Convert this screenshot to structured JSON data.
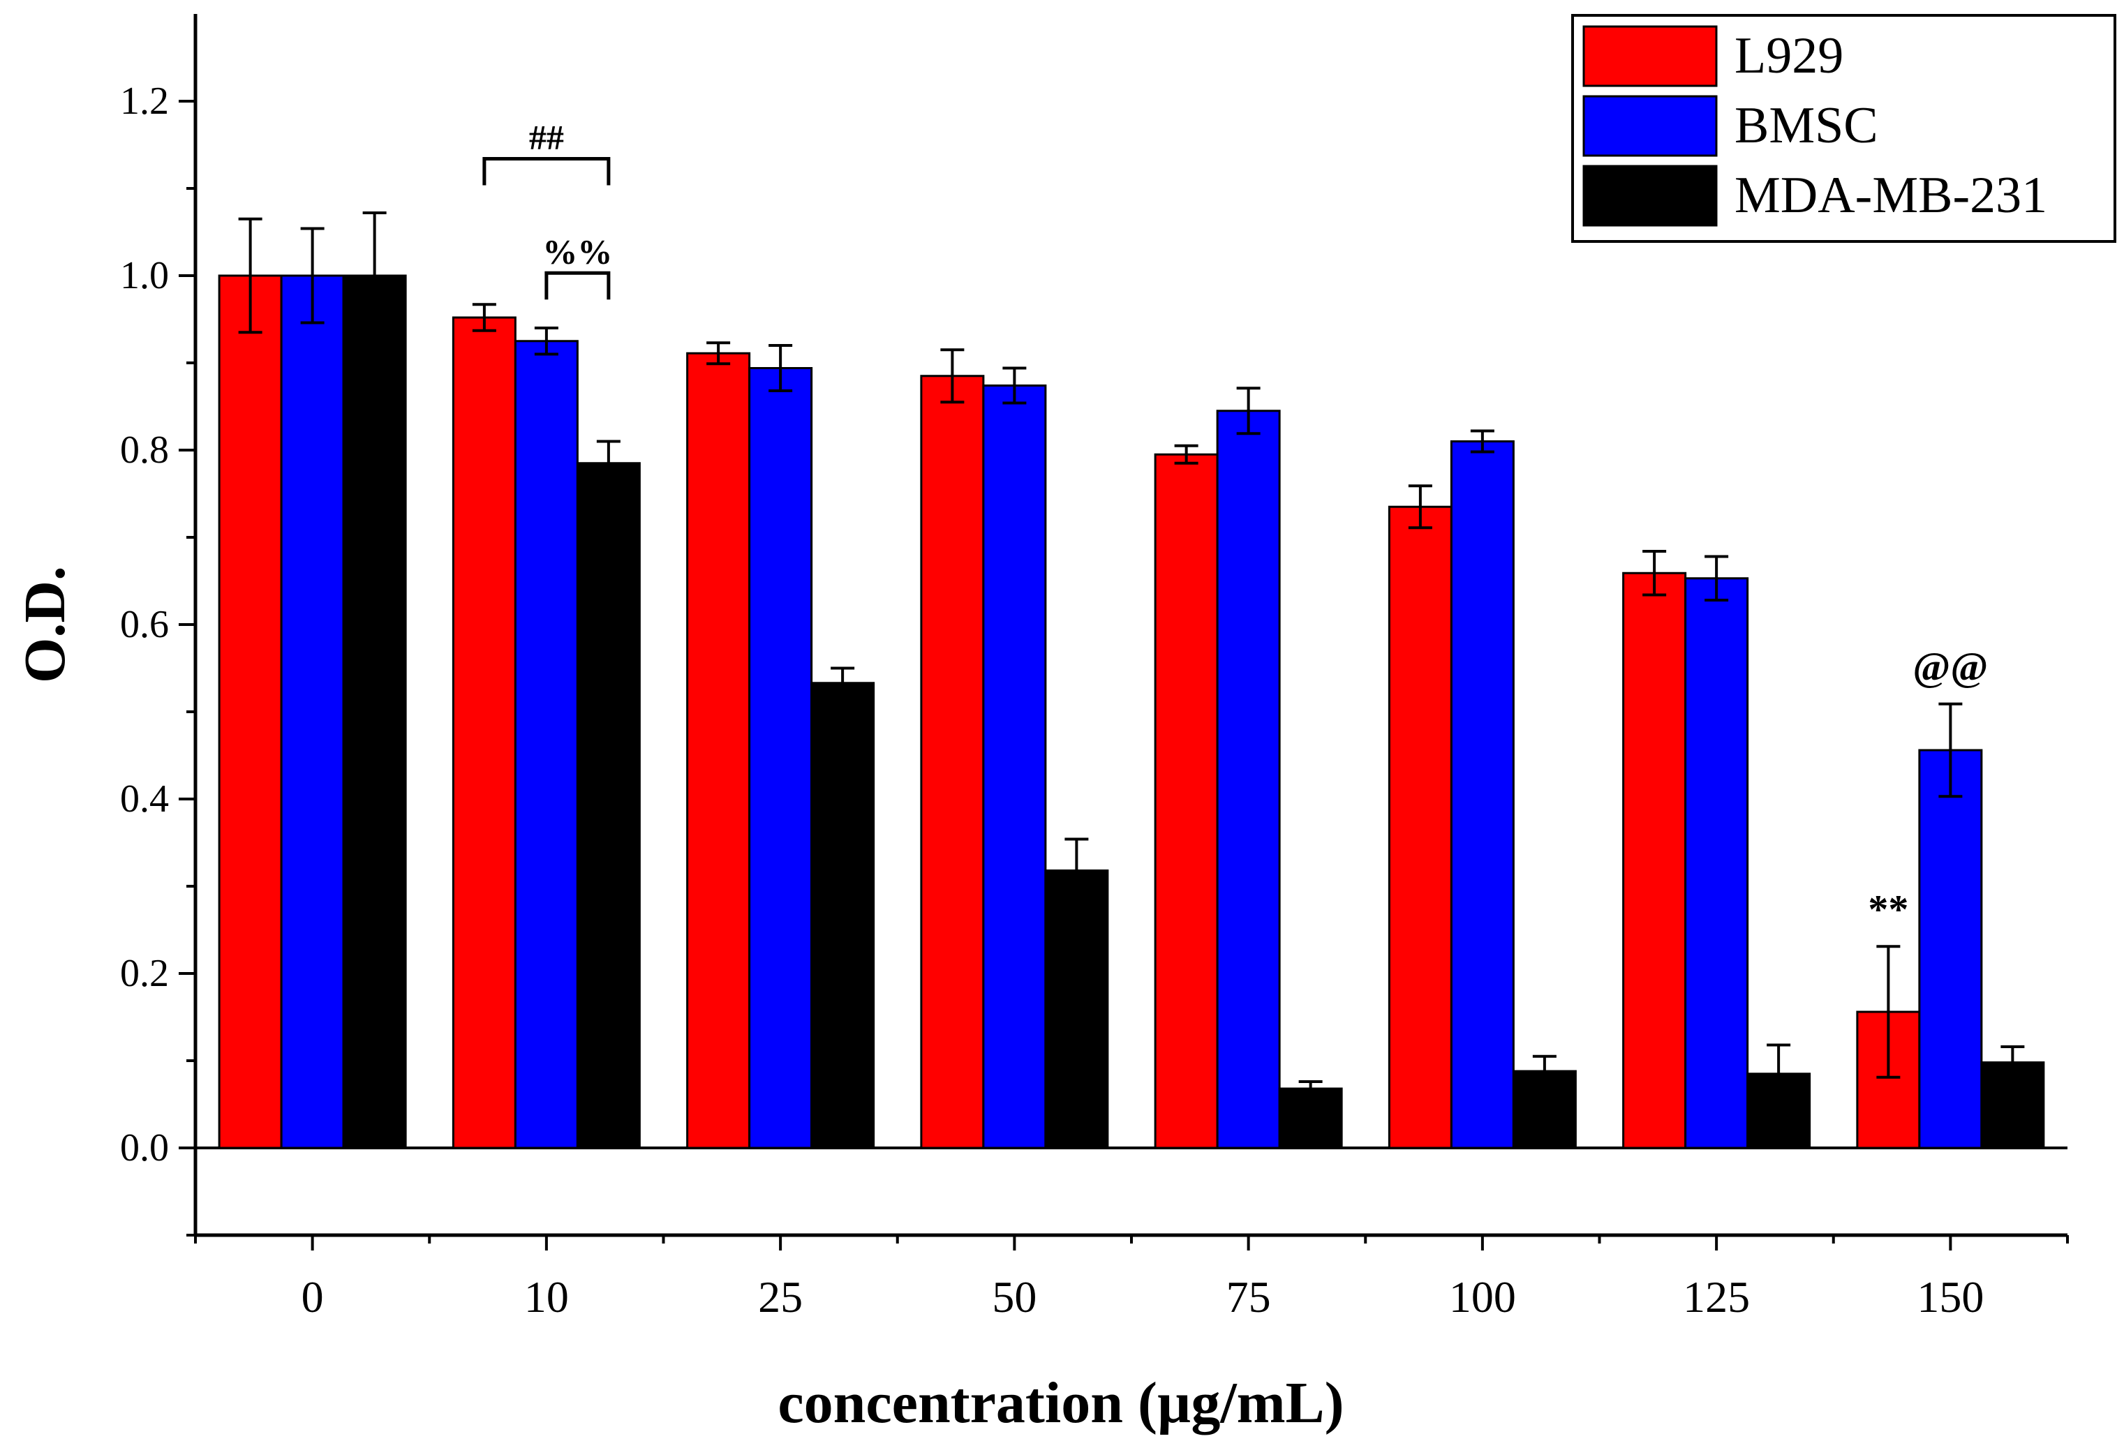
{
  "chart_data": {
    "type": "bar",
    "title": "",
    "xlabel": "concentration (µg/mL)",
    "ylabel": "O.D.",
    "ylim": [
      -0.1,
      1.3
    ],
    "yticks": [
      0.0,
      0.2,
      0.4,
      0.6,
      0.8,
      1.0,
      1.2
    ],
    "ytick_labels": [
      "0.0",
      "0.2",
      "0.4",
      "0.6",
      "0.8",
      "1.0",
      "1.2"
    ],
    "categories": [
      "0",
      "10",
      "25",
      "50",
      "75",
      "100",
      "125",
      "150"
    ],
    "series": [
      {
        "name": "L929",
        "color": "#ff0000",
        "values": [
          1.0,
          0.952,
          0.911,
          0.885,
          0.795,
          0.735,
          0.659,
          0.156
        ],
        "errors": [
          0.065,
          0.015,
          0.012,
          0.03,
          0.01,
          0.024,
          0.025,
          0.075
        ]
      },
      {
        "name": "BMSC",
        "color": "#0000ff",
        "values": [
          1.0,
          0.925,
          0.894,
          0.874,
          0.845,
          0.81,
          0.653,
          0.456
        ],
        "errors": [
          0.054,
          0.015,
          0.026,
          0.02,
          0.026,
          0.012,
          0.025,
          0.053
        ]
      },
      {
        "name": "MDA-MB-231",
        "color": "#000000",
        "values": [
          1.0,
          0.785,
          0.533,
          0.318,
          0.068,
          0.088,
          0.085,
          0.098
        ],
        "errors": [
          0.072,
          0.025,
          0.017,
          0.036,
          0.008,
          0.017,
          0.033,
          0.018
        ]
      }
    ],
    "annotations": [
      {
        "text": "##",
        "type": "bracket",
        "category": "10",
        "from_series": 0,
        "to_series": 2,
        "at_y": 1.134
      },
      {
        "text": "%%",
        "type": "bracket",
        "category": "10",
        "from_series": 1,
        "to_series": 2,
        "at_y": 1.003
      },
      {
        "text": "**",
        "type": "label",
        "category": "150",
        "series": 0
      },
      {
        "text": "@@",
        "type": "label",
        "category": "150",
        "series": 1
      }
    ],
    "legend": {
      "position": "top-right"
    },
    "grid": false
  }
}
